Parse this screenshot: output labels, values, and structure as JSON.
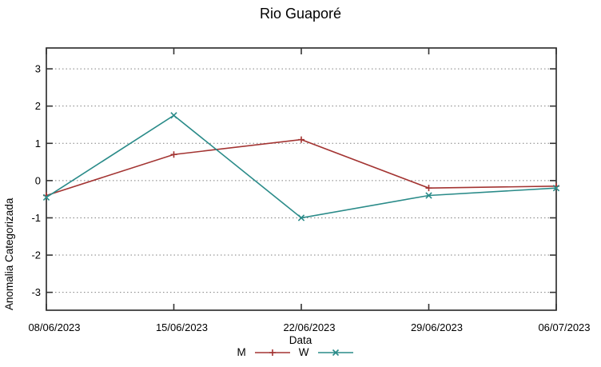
{
  "title": "Rio Guaporé",
  "chart_data": {
    "type": "line",
    "title": "Rio Guaporé",
    "xlabel": "Data",
    "ylabel": "Anomalia Categorizada",
    "x": [
      "08/06/2023",
      "15/06/2023",
      "22/06/2023",
      "29/06/2023",
      "06/07/2023"
    ],
    "series": [
      {
        "name": "M",
        "marker": "plus",
        "color": "#a33432",
        "values": [
          -0.4,
          0.7,
          1.1,
          -0.2,
          -0.15
        ]
      },
      {
        "name": "W",
        "marker": "cross",
        "color": "#2a8b89",
        "values": [
          -0.45,
          1.75,
          -1.0,
          -0.4,
          -0.2
        ]
      }
    ],
    "yticks": [
      -3,
      -2,
      -1,
      0,
      1,
      2,
      3
    ],
    "ylim": [
      -3.5,
      3.5
    ],
    "grid": "horizontal-dotted",
    "grid_color": "#808080",
    "frame_color": "#333333",
    "legend_position": "bottom-center"
  }
}
